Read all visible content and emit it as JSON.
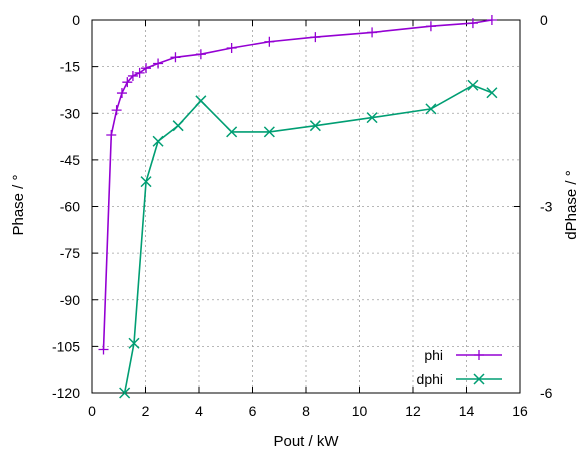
{
  "chart_data": {
    "type": "line",
    "title": "",
    "xlabel": "Pout / kW",
    "ylabel": "Phase / °",
    "y2label": "dPhase / °",
    "xlim": [
      0,
      16
    ],
    "ylim": [
      -120,
      0
    ],
    "y2lim": [
      -6,
      0
    ],
    "xticks": [
      "0",
      "2",
      "4",
      "6",
      "8",
      "10",
      "12",
      "14",
      "16"
    ],
    "yticks": [
      "0",
      "-15",
      "-30",
      "-45",
      "-60",
      "-75",
      "-90",
      "-105",
      "-120"
    ],
    "y2ticks": [
      "0",
      "-3",
      "-6"
    ],
    "grid": true,
    "legend_position": "bottom-right",
    "series": [
      {
        "name": "phi",
        "axis": "y",
        "color": "#9400d3",
        "marker": "plus",
        "x": [
          0.43,
          0.72,
          0.92,
          1.12,
          1.32,
          1.53,
          1.78,
          2.02,
          2.47,
          3.12,
          4.07,
          5.22,
          6.63,
          8.35,
          10.47,
          12.67,
          14.24,
          14.95
        ],
        "y": [
          -106,
          -37,
          -29,
          -23.5,
          -20,
          -18,
          -17,
          -15.5,
          -14,
          -12,
          -11,
          -9,
          -7,
          -5.5,
          -4,
          -2,
          -1,
          0
        ]
      },
      {
        "name": "dphi",
        "axis": "y2",
        "color": "#009e73",
        "marker": "x",
        "x": [
          1.22,
          1.57,
          2.02,
          2.47,
          3.22,
          4.07,
          5.22,
          6.63,
          8.35,
          10.47,
          12.67,
          14.24,
          14.95
        ],
        "y": [
          -6.0,
          -5.2,
          -2.6,
          -1.95,
          -1.7,
          -1.3,
          -1.8,
          -1.8,
          -1.7,
          -1.57,
          -1.43,
          -1.05,
          -1.17
        ]
      }
    ]
  }
}
